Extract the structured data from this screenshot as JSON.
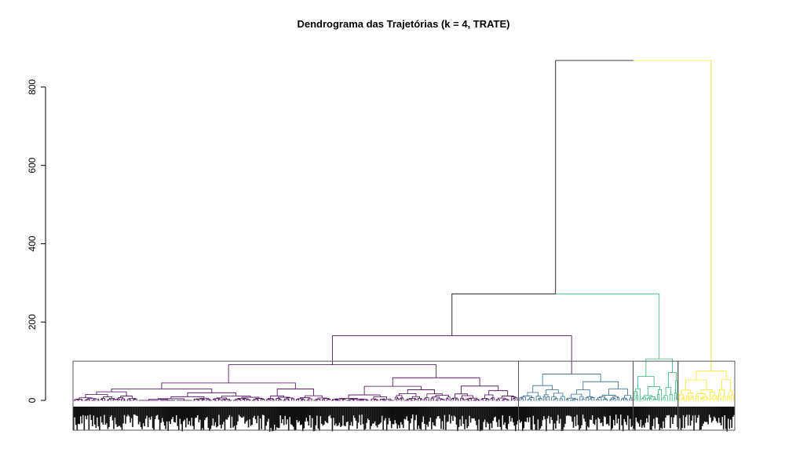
{
  "chart_data": {
    "type": "dendrogram",
    "title": "Dendrograma das Trajetórias (k = 4, TRATE)",
    "xlabel": "",
    "ylabel": "",
    "ylim": [
      0,
      870
    ],
    "y_ticks": [
      0,
      200,
      400,
      600,
      800
    ],
    "y_tick_labels": [
      "0",
      "200",
      "400",
      "600",
      "800"
    ],
    "grid": false,
    "cluster_box_height": 100,
    "n_leaves": 560,
    "root_height": 868,
    "clusters": [
      {
        "id": 1,
        "color": "#440154",
        "leaf_start": 0,
        "leaf_end": 376,
        "height": 91
      },
      {
        "id": 2,
        "color": "#31688E",
        "leaf_start": 377,
        "leaf_end": 473,
        "height": 67
      },
      {
        "id": 3,
        "color": "#35B779",
        "leaf_start": 474,
        "leaf_end": 511,
        "height": 106
      },
      {
        "id": 4,
        "color": "#FDE725",
        "leaf_start": 512,
        "leaf_end": 559,
        "height": 75
      }
    ],
    "merges": [
      {
        "left": 1,
        "right": 2,
        "height": 165,
        "color": "#440154"
      },
      {
        "left": "1+2",
        "right": 3,
        "height": 272,
        "color": "#000000"
      },
      {
        "left": "1+2+3",
        "right": 4,
        "height": 868,
        "color": "#000000"
      }
    ]
  }
}
